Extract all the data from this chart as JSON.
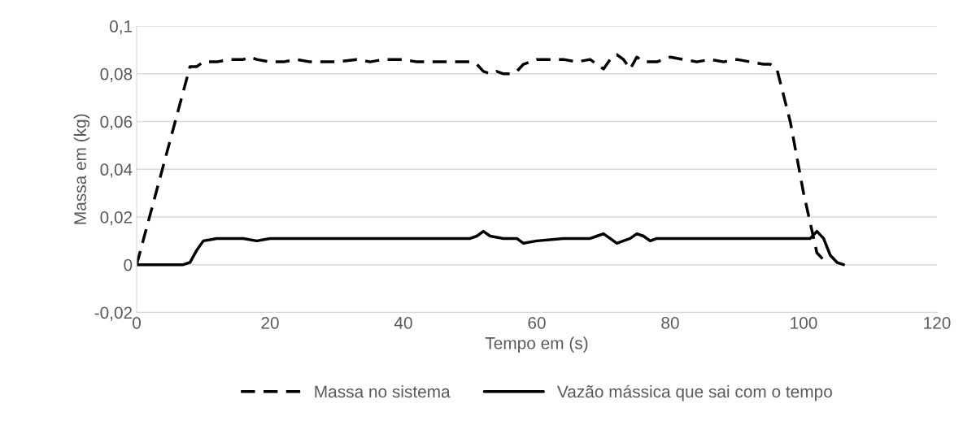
{
  "chart_data": {
    "type": "line",
    "xlabel": "Tempo em (s)",
    "ylabel": "Massa em (kg)",
    "xlim": [
      0,
      120
    ],
    "xticks": [
      0,
      20,
      40,
      60,
      80,
      100,
      120
    ],
    "ylim": [
      -0.02,
      0.1
    ],
    "yticks": [
      {
        "value": -0.02,
        "label": "-0,02"
      },
      {
        "value": 0,
        "label": "0"
      },
      {
        "value": 0.02,
        "label": "0,02"
      },
      {
        "value": 0.04,
        "label": "0,04"
      },
      {
        "value": 0.06,
        "label": "0,06"
      },
      {
        "value": 0.08,
        "label": "0,08"
      },
      {
        "value": 0.1,
        "label": "0,1"
      }
    ],
    "grid": "y",
    "legend": "bottom",
    "marker": "none",
    "series": [
      {
        "name": "Massa no sistema",
        "color": "#000000",
        "line_style": "dashed",
        "x": [
          0,
          8,
          9,
          10,
          12,
          14,
          16,
          17,
          18,
          20,
          22,
          24,
          26,
          28,
          30,
          33,
          35,
          37,
          40,
          42,
          44,
          46,
          48,
          50,
          51,
          52,
          53,
          54,
          55,
          56,
          57,
          58,
          60,
          62,
          64,
          66,
          68,
          69,
          70,
          71,
          72,
          73,
          74,
          75,
          76,
          78,
          80,
          82,
          84,
          86,
          88,
          90,
          92,
          94,
          95,
          96,
          98,
          100,
          102,
          103
        ],
        "values": [
          0,
          0.083,
          0.083,
          0.085,
          0.085,
          0.086,
          0.086,
          0.087,
          0.086,
          0.085,
          0.085,
          0.086,
          0.085,
          0.085,
          0.085,
          0.086,
          0.085,
          0.086,
          0.086,
          0.085,
          0.085,
          0.085,
          0.085,
          0.085,
          0.084,
          0.081,
          0.08,
          0.081,
          0.08,
          0.08,
          0.081,
          0.084,
          0.086,
          0.086,
          0.086,
          0.085,
          0.086,
          0.084,
          0.082,
          0.086,
          0.088,
          0.086,
          0.082,
          0.087,
          0.085,
          0.085,
          0.087,
          0.086,
          0.085,
          0.086,
          0.085,
          0.086,
          0.085,
          0.084,
          0.084,
          0.082,
          0.06,
          0.03,
          0.005,
          0.002
        ]
      },
      {
        "name": "Vazão mássica que sai com o tempo",
        "color": "#000000",
        "line_style": "solid",
        "x": [
          0,
          7,
          8,
          9,
          10,
          12,
          14,
          16,
          18,
          20,
          24,
          28,
          32,
          36,
          40,
          44,
          48,
          50,
          51,
          52,
          53,
          55,
          57,
          58,
          60,
          64,
          68,
          69,
          70,
          71,
          72,
          74,
          75,
          76,
          77,
          78,
          82,
          86,
          90,
          94,
          98,
          100,
          101,
          102,
          103,
          104,
          105,
          106
        ],
        "values": [
          0,
          0,
          0.001,
          0.006,
          0.01,
          0.011,
          0.011,
          0.011,
          0.01,
          0.011,
          0.011,
          0.011,
          0.011,
          0.011,
          0.011,
          0.011,
          0.011,
          0.011,
          0.012,
          0.014,
          0.012,
          0.011,
          0.011,
          0.009,
          0.01,
          0.011,
          0.011,
          0.012,
          0.013,
          0.011,
          0.009,
          0.011,
          0.013,
          0.012,
          0.01,
          0.011,
          0.011,
          0.011,
          0.011,
          0.011,
          0.011,
          0.011,
          0.011,
          0.014,
          0.011,
          0.004,
          0.001,
          0
        ]
      }
    ]
  }
}
